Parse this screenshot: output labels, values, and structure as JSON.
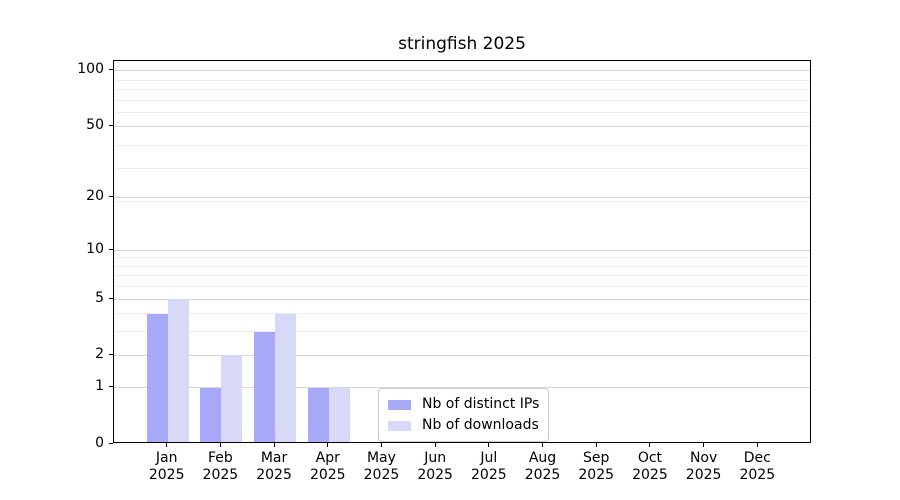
{
  "chart_data": {
    "type": "bar",
    "title": "stringfish 2025",
    "categories": [
      {
        "month": "Jan",
        "year": "2025"
      },
      {
        "month": "Feb",
        "year": "2025"
      },
      {
        "month": "Mar",
        "year": "2025"
      },
      {
        "month": "Apr",
        "year": "2025"
      },
      {
        "month": "May",
        "year": "2025"
      },
      {
        "month": "Jun",
        "year": "2025"
      },
      {
        "month": "Jul",
        "year": "2025"
      },
      {
        "month": "Aug",
        "year": "2025"
      },
      {
        "month": "Sep",
        "year": "2025"
      },
      {
        "month": "Oct",
        "year": "2025"
      },
      {
        "month": "Nov",
        "year": "2025"
      },
      {
        "month": "Dec",
        "year": "2025"
      }
    ],
    "series": [
      {
        "name": "Nb of distinct IPs",
        "color": "#a8a8f8",
        "values": [
          4,
          1,
          3,
          1,
          0,
          0,
          0,
          0,
          0,
          0,
          0,
          0
        ]
      },
      {
        "name": "Nb of downloads",
        "color": "#d8d8f8",
        "values": [
          5,
          2,
          4,
          1,
          0,
          0,
          0,
          0,
          0,
          0,
          0,
          0
        ]
      }
    ],
    "yscale": "log1p",
    "ylim": [
      0,
      113
    ],
    "yticks": [
      0,
      1,
      2,
      5,
      10,
      20,
      50,
      100
    ],
    "yticks_minor": [
      3,
      4,
      6,
      7,
      8,
      9,
      19,
      29,
      39,
      59,
      69,
      79,
      89
    ],
    "grid": true,
    "legend_position": "lower center",
    "colors": {
      "grid_major": "#d6d6d6",
      "grid_minor": "#ececec",
      "spine": "#000000",
      "legend_border": "#cccccc"
    }
  }
}
